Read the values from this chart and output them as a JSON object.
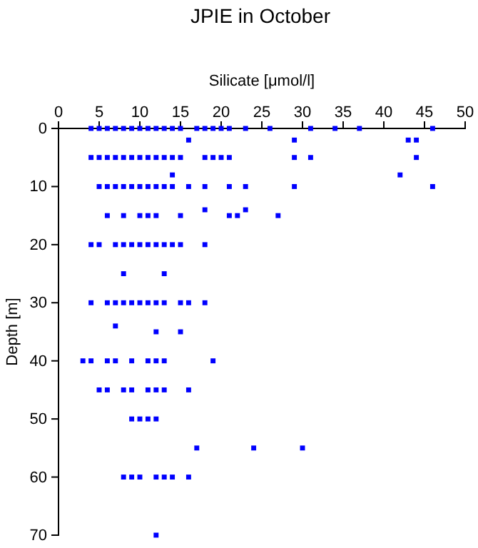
{
  "chart_data": {
    "type": "scatter",
    "title": "JPIE in October",
    "xlabel": "Silicate [μmol/l]",
    "ylabel": "Depth [m]",
    "xlim": [
      0,
      50
    ],
    "xticks": [
      0,
      5,
      10,
      15,
      20,
      25,
      30,
      35,
      40,
      45,
      50
    ],
    "ylim": [
      70,
      0
    ],
    "yticks": [
      0,
      10,
      20,
      30,
      40,
      50,
      60,
      70
    ],
    "grid": false,
    "marker": "square",
    "series": [
      {
        "color": "#0000ff",
        "x": [
          4,
          5,
          6,
          7,
          8,
          9,
          10,
          11,
          12,
          13,
          14,
          15,
          17,
          18,
          19,
          20,
          21,
          23,
          26,
          31,
          34,
          37,
          46,
          16,
          29,
          43,
          44,
          4,
          5,
          6,
          7,
          8,
          9,
          10,
          11,
          12,
          13,
          14,
          15,
          18,
          19,
          20,
          21,
          29,
          31,
          44,
          14,
          42,
          5,
          6,
          7,
          8,
          9,
          10,
          11,
          12,
          13,
          14,
          16,
          18,
          21,
          23,
          29,
          46,
          18,
          23,
          6,
          8,
          10,
          11,
          12,
          15,
          21,
          22,
          27,
          4,
          5,
          7,
          8,
          9,
          10,
          11,
          12,
          13,
          14,
          15,
          18,
          8,
          13,
          4,
          6,
          7,
          8,
          9,
          10,
          11,
          12,
          13,
          15,
          16,
          18,
          7,
          12,
          15,
          3,
          4,
          6,
          7,
          9,
          11,
          12,
          13,
          19,
          5,
          6,
          8,
          9,
          11,
          12,
          13,
          16,
          9,
          10,
          11,
          12,
          17,
          24,
          30,
          8,
          9,
          10,
          12,
          13,
          14,
          16,
          12
        ],
        "values": [
          0,
          0,
          0,
          0,
          0,
          0,
          0,
          0,
          0,
          0,
          0,
          0,
          0,
          0,
          0,
          0,
          0,
          0,
          0,
          0,
          0,
          0,
          0,
          2,
          2,
          2,
          2,
          5,
          5,
          5,
          5,
          5,
          5,
          5,
          5,
          5,
          5,
          5,
          5,
          5,
          5,
          5,
          5,
          5,
          5,
          5,
          8,
          8,
          10,
          10,
          10,
          10,
          10,
          10,
          10,
          10,
          10,
          10,
          10,
          10,
          10,
          10,
          10,
          10,
          14,
          14,
          15,
          15,
          15,
          15,
          15,
          15,
          15,
          15,
          15,
          20,
          20,
          20,
          20,
          20,
          20,
          20,
          20,
          20,
          20,
          20,
          20,
          25,
          25,
          30,
          30,
          30,
          30,
          30,
          30,
          30,
          30,
          30,
          30,
          30,
          30,
          34,
          35,
          35,
          40,
          40,
          40,
          40,
          40,
          40,
          40,
          40,
          40,
          45,
          45,
          45,
          45,
          45,
          45,
          45,
          45,
          50,
          50,
          50,
          50,
          55,
          55,
          55,
          60,
          60,
          60,
          60,
          60,
          60,
          60,
          70
        ]
      }
    ]
  }
}
